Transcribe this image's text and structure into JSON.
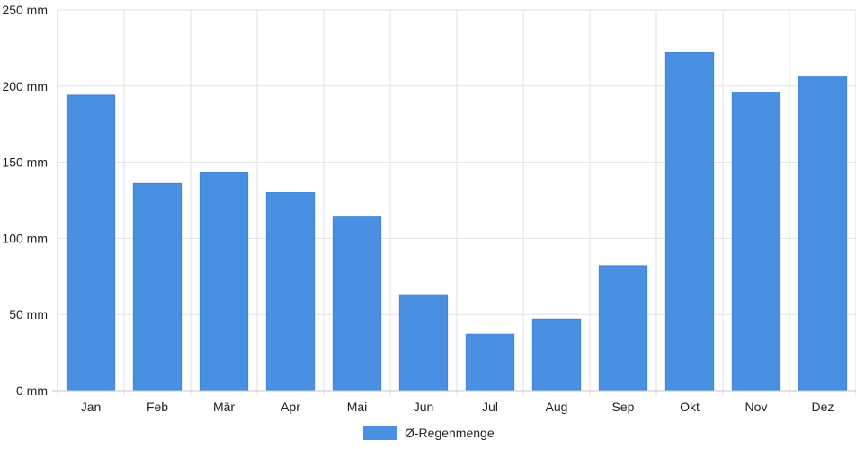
{
  "chart_data": {
    "type": "bar",
    "categories": [
      "Jan",
      "Feb",
      "Mär",
      "Apr",
      "Mai",
      "Jun",
      "Jul",
      "Aug",
      "Sep",
      "Okt",
      "Nov",
      "Dez"
    ],
    "series": [
      {
        "name": "Ø-Regenmenge",
        "values": [
          194,
          136,
          143,
          130,
          114,
          63,
          37,
          47,
          82,
          222,
          196,
          206
        ],
        "color": "#4a90e2"
      }
    ],
    "ylim": [
      0,
      250
    ],
    "y_ticks": [
      0,
      50,
      100,
      150,
      200,
      250
    ],
    "y_unit": "mm",
    "grid": true,
    "legend_position": "bottom-center"
  }
}
